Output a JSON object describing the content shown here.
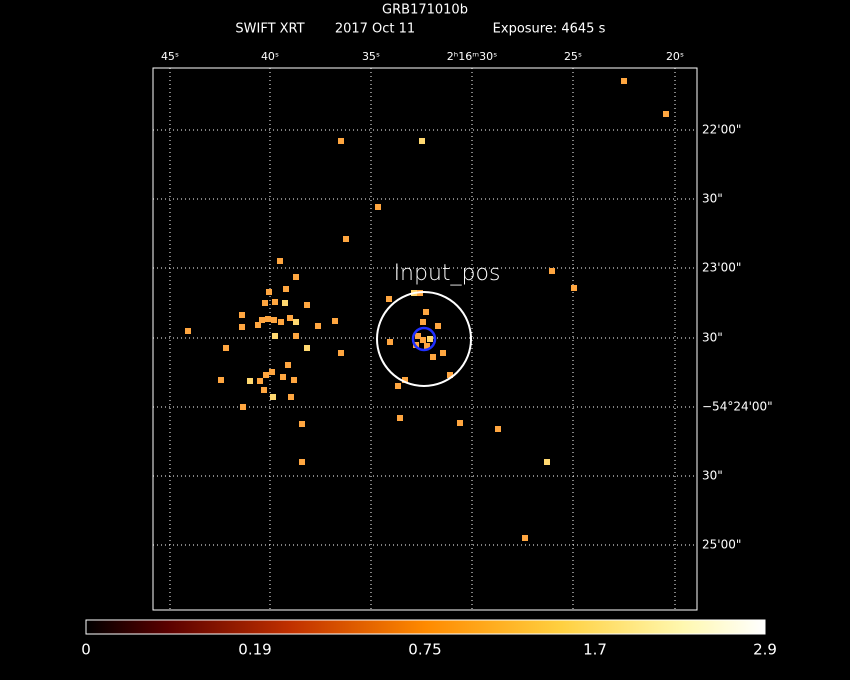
{
  "header": {
    "title": "GRB171010b",
    "instrument": "SWIFT XRT",
    "date": "2017 Oct 11",
    "exposure": "Exposure: 4645 s"
  },
  "ra_labels": [
    "45ˢ",
    "40ˢ",
    "35ˢ",
    "2ʰ16ᵐ30ˢ",
    "25ˢ",
    "20ˢ"
  ],
  "dec_labels": [
    "22'00\"",
    "30\"",
    "23'00\"",
    "30\"",
    "−54°24'00\"",
    "30\"",
    "25'00\""
  ],
  "region_label": "Input_pos",
  "colorbar": {
    "labels": [
      "0",
      "0.19",
      "0.75",
      "1.7",
      "2.9"
    ]
  }
}
